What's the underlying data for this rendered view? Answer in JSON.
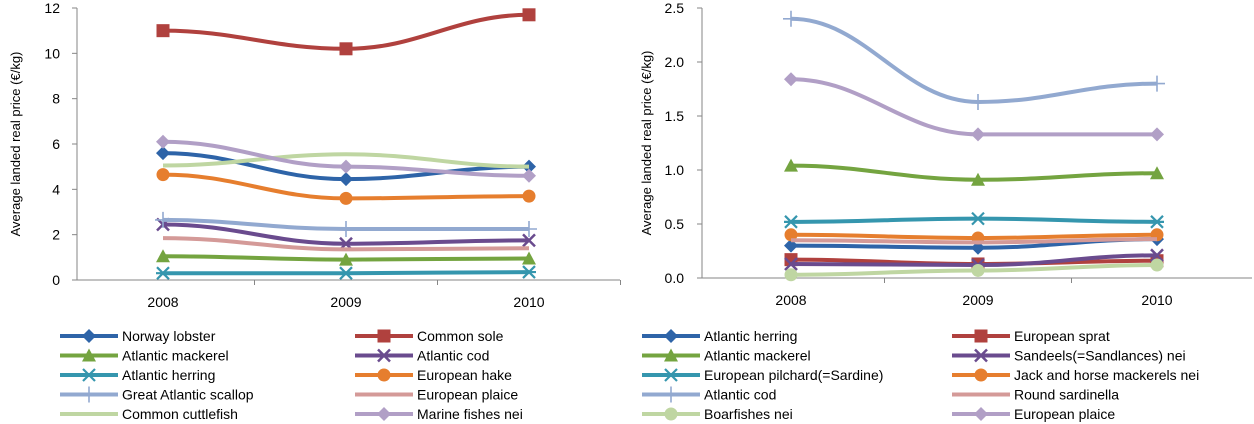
{
  "chart_data": [
    {
      "type": "line",
      "ylabel": "Average landed real price (€/kg)",
      "xlabel": "",
      "categories": [
        "2008",
        "2009",
        "2010"
      ],
      "ylim": [
        0,
        12
      ],
      "yticks": [
        0,
        2,
        4,
        6,
        8,
        10,
        12
      ],
      "grid": false,
      "legend": "bottom",
      "series": [
        {
          "name": "Norway lobster",
          "values": [
            5.6,
            4.45,
            5.0
          ],
          "color": "#2E64A8",
          "marker": "diamond"
        },
        {
          "name": "Common sole",
          "values": [
            11.0,
            10.2,
            11.7
          ],
          "color": "#B0413E",
          "marker": "square"
        },
        {
          "name": "Atlantic mackerel",
          "values": [
            1.05,
            0.9,
            0.95
          ],
          "color": "#74A440",
          "marker": "triangle"
        },
        {
          "name": "Atlantic cod",
          "values": [
            2.45,
            1.6,
            1.75
          ],
          "color": "#6A4B8E",
          "marker": "x"
        },
        {
          "name": "Atlantic herring",
          "values": [
            0.3,
            0.3,
            0.35
          ],
          "color": "#3596AE",
          "marker": "asterisk"
        },
        {
          "name": "European hake",
          "values": [
            4.65,
            3.6,
            3.7
          ],
          "color": "#E67E2E",
          "marker": "circle"
        },
        {
          "name": "Great Atlantic scallop",
          "values": [
            2.65,
            2.25,
            2.25
          ],
          "color": "#92A9D0",
          "marker": "plus"
        },
        {
          "name": "European plaice",
          "values": [
            1.85,
            1.35,
            1.4
          ],
          "color": "#D49A98",
          "marker": "none"
        },
        {
          "name": "Common cuttlefish",
          "values": [
            5.05,
            5.55,
            5.0
          ],
          "color": "#BFD6A2",
          "marker": "none"
        },
        {
          "name": "Marine fishes nei",
          "values": [
            6.1,
            5.0,
            4.6
          ],
          "color": "#B19FC6",
          "marker": "diamond"
        }
      ]
    },
    {
      "type": "line",
      "ylabel": "Average landed real price (€/kg)",
      "xlabel": "",
      "categories": [
        "2008",
        "2009",
        "2010"
      ],
      "ylim": [
        0,
        2.5
      ],
      "yticks": [
        "0.0",
        "0.5",
        "1.0",
        "1.5",
        "2.0",
        "2.5"
      ],
      "grid": false,
      "legend": "bottom",
      "series": [
        {
          "name": "Atlantic herring",
          "values": [
            0.3,
            0.28,
            0.36
          ],
          "color": "#2E64A8",
          "marker": "diamond"
        },
        {
          "name": "European sprat",
          "values": [
            0.17,
            0.13,
            0.16
          ],
          "color": "#B0413E",
          "marker": "square"
        },
        {
          "name": "Atlantic mackerel",
          "values": [
            1.04,
            0.91,
            0.97
          ],
          "color": "#74A440",
          "marker": "triangle"
        },
        {
          "name": "Sandeels(=Sandlances) nei",
          "values": [
            0.13,
            0.12,
            0.21
          ],
          "color": "#6A4B8E",
          "marker": "x"
        },
        {
          "name": "European pilchard(=Sardine)",
          "values": [
            0.52,
            0.55,
            0.52
          ],
          "color": "#3596AE",
          "marker": "asterisk"
        },
        {
          "name": "Jack and horse mackerels nei",
          "values": [
            0.4,
            0.37,
            0.4
          ],
          "color": "#E67E2E",
          "marker": "circle"
        },
        {
          "name": "Atlantic cod",
          "values": [
            2.4,
            1.63,
            1.8
          ],
          "color": "#92A9D0",
          "marker": "plus"
        },
        {
          "name": "Round sardinella",
          "values": [
            0.35,
            0.33,
            0.36
          ],
          "color": "#D49A98",
          "marker": "none"
        },
        {
          "name": "Boarfishes nei",
          "values": [
            0.03,
            0.07,
            0.12
          ],
          "color": "#BFD6A2",
          "marker": "circle"
        },
        {
          "name": "European plaice",
          "values": [
            1.84,
            1.33,
            1.33
          ],
          "color": "#B19FC6",
          "marker": "diamond"
        }
      ]
    }
  ]
}
